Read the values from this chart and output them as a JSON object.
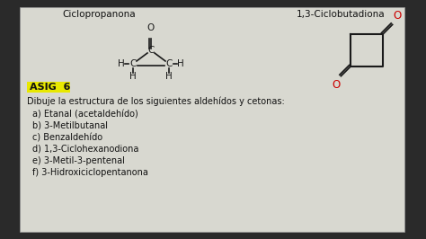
{
  "bg_outer": "#2a2a2a",
  "bg_inner": "#d8d8d0",
  "title1": "Ciclopropanona",
  "title2": "1,3-Ciclobutadiona",
  "asig_label": "ASIG  6",
  "asig_bg": "#e8e800",
  "instruction": "Dibuje la estructura de los siguientes aldehídos y cetonas:",
  "items": [
    "a) Etanal (acetaldehído)",
    "b) 3-Metilbutanal",
    "c) Benzaldehído",
    "d) 1,3-Ciclohexanodiona",
    "e) 3-Metil-3-pentenal",
    "f) 3-Hidroxiciclopentanona"
  ],
  "text_color": "#111111",
  "line_color": "#1a1a1a",
  "red_color": "#cc0000",
  "font_size_title": 7.5,
  "font_size_body": 7,
  "font_size_asig": 8,
  "font_size_mol": 7.5
}
